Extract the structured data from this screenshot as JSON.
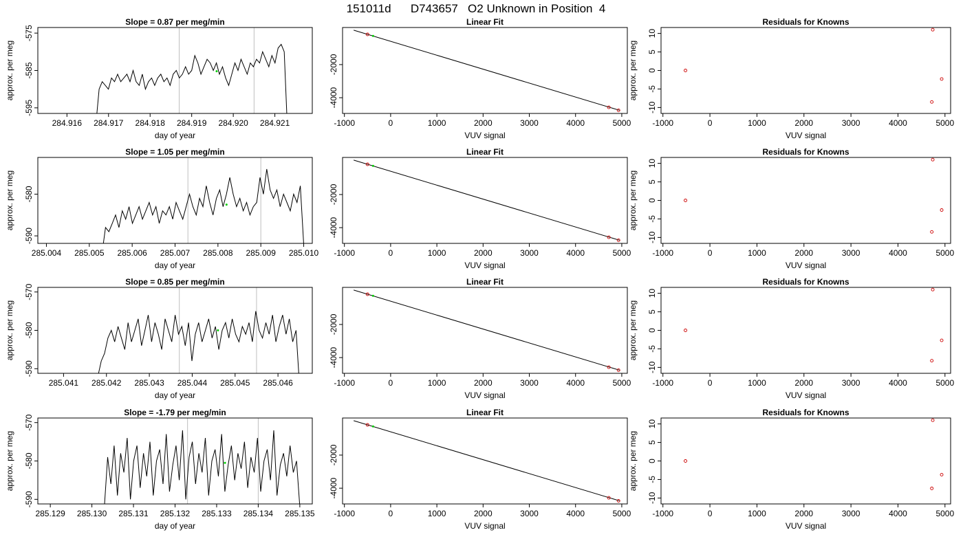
{
  "figure_title": "151011d      D743657   O2 Unknown in Position  4",
  "colors": {
    "frame": "#000000",
    "trace": "#000000",
    "marker": "#00cc00",
    "residual": "#cc0000",
    "vline": "#bebebe"
  },
  "chart_data": [
    {
      "type": "line",
      "panel": "time-series",
      "row": 0,
      "title": "Slope =  0.87  per meg/min",
      "xlabel": "day of year",
      "ylabel": "approx. per meg",
      "xlim": [
        284.9153,
        284.9219
      ],
      "ylim": [
        -596.5,
        -573.5
      ],
      "xticks": [
        "284.916",
        "284.917",
        "284.918",
        "284.919",
        "284.920",
        "284.921"
      ],
      "yticks": [
        "-575",
        "-585",
        "-595"
      ],
      "trace_x_range": [
        284.9167,
        284.9213
      ],
      "trace_y": [
        -599,
        -590,
        -588,
        -589,
        -590,
        -587,
        -588,
        -586,
        -588,
        -587,
        -586,
        -588,
        -585,
        -588,
        -589,
        -586,
        -590,
        -588,
        -587,
        -589,
        -587,
        -586,
        -588,
        -587,
        -589,
        -586,
        -585,
        -587,
        -586,
        -584,
        -586,
        -585,
        -581,
        -583,
        -586,
        -584,
        -582,
        -583,
        -585,
        -583,
        -586,
        -584,
        -587,
        -589,
        -586,
        -583,
        -585,
        -582,
        -584,
        -586,
        -583,
        -584,
        -582,
        -583,
        -580,
        -582,
        -584,
        -581,
        -583,
        -579,
        -578,
        -580,
        -600
      ],
      "vlines": [
        284.9187,
        284.9205
      ],
      "marker": {
        "x": 284.9196,
        "y": -585.2
      }
    },
    {
      "type": "scatter",
      "panel": "linear-fit",
      "row": 0,
      "title": "Linear Fit",
      "xlabel": "VUV signal",
      "ylabel": "",
      "xlim": [
        -1040,
        5120
      ],
      "ylim": [
        -4950,
        240
      ],
      "xticks": [
        "-1000",
        "0",
        "1000",
        "2000",
        "3000",
        "4000",
        "5000"
      ],
      "yticks": [
        "-2000",
        "-4000"
      ],
      "fit_line": {
        "x": [
          -800,
          4950
        ],
        "y": [
          80,
          -4760
        ]
      },
      "points": [
        {
          "x": -500,
          "y": -175
        },
        {
          "x": 4720,
          "y": -4580
        },
        {
          "x": 4930,
          "y": -4760
        }
      ],
      "unknown": {
        "x": -380,
        "y": -270
      }
    },
    {
      "type": "scatter",
      "panel": "residuals",
      "row": 0,
      "title": "Residuals for Knowns",
      "xlabel": "VUV signal",
      "ylabel": "approx. per meg",
      "xlim": [
        -1040,
        5120
      ],
      "ylim": [
        -11.6,
        11.6
      ],
      "xticks": [
        "-1000",
        "0",
        "1000",
        "2000",
        "3000",
        "4000",
        "5000"
      ],
      "yticks": [
        "10",
        "5",
        "0",
        "-5",
        "-10"
      ],
      "points": [
        {
          "x": -520,
          "y": 0
        },
        {
          "x": 4720,
          "y": -8.5
        },
        {
          "x": 4930,
          "y": -2.3
        },
        {
          "x": 4740,
          "y": 11
        }
      ]
    },
    {
      "type": "line",
      "panel": "time-series",
      "row": 1,
      "title": "Slope =  1.05  per meg/min",
      "xlabel": "day of year",
      "ylabel": "approx. per meg",
      "xlim": [
        285.0038,
        285.0102
      ],
      "ylim": [
        -591.8,
        -571.2
      ],
      "xticks": [
        "285.004",
        "285.005",
        "285.006",
        "285.007",
        "285.008",
        "285.009",
        "285.010"
      ],
      "yticks": [
        "-580",
        "-590"
      ],
      "trace_x_range": [
        285.0053,
        285.01
      ],
      "trace_y": [
        -594,
        -588,
        -589,
        -587,
        -585,
        -588,
        -584,
        -586,
        -583,
        -587,
        -585,
        -583,
        -586,
        -584,
        -582,
        -585,
        -583,
        -587,
        -584,
        -585,
        -583,
        -586,
        -582,
        -584,
        -586,
        -583,
        -580,
        -583,
        -585,
        -581,
        -583,
        -578,
        -582,
        -585,
        -581,
        -579,
        -583,
        -580,
        -576,
        -580,
        -583,
        -581,
        -584,
        -582,
        -585,
        -583,
        -582,
        -576,
        -580,
        -574,
        -579,
        -581,
        -579,
        -583,
        -580,
        -582,
        -584,
        -580,
        -582,
        -578,
        -592
      ],
      "vlines": [
        285.0073,
        285.009
      ],
      "marker": {
        "x": 285.0082,
        "y": -582.5
      }
    },
    {
      "type": "scatter",
      "panel": "linear-fit",
      "row": 1,
      "title": "Linear Fit",
      "xlabel": "VUV signal",
      "ylabel": "",
      "xlim": [
        -1040,
        5120
      ],
      "ylim": [
        -4950,
        240
      ],
      "xticks": [
        "-1000",
        "0",
        "1000",
        "2000",
        "3000",
        "4000",
        "5000"
      ],
      "yticks": [
        "-2000",
        "-4000"
      ],
      "fit_line": {
        "x": [
          -800,
          4950
        ],
        "y": [
          80,
          -4760
        ]
      },
      "points": [
        {
          "x": -500,
          "y": -175
        },
        {
          "x": 4720,
          "y": -4580
        },
        {
          "x": 4930,
          "y": -4760
        }
      ],
      "unknown": {
        "x": -380,
        "y": -270
      }
    },
    {
      "type": "scatter",
      "panel": "residuals",
      "row": 1,
      "title": "Residuals for Knowns",
      "xlabel": "VUV signal",
      "ylabel": "approx. per meg",
      "xlim": [
        -1040,
        5120
      ],
      "ylim": [
        -11.6,
        11.6
      ],
      "xticks": [
        "-1000",
        "0",
        "1000",
        "2000",
        "3000",
        "4000",
        "5000"
      ],
      "yticks": [
        "10",
        "5",
        "0",
        "-5",
        "-10"
      ],
      "points": [
        {
          "x": -520,
          "y": 0
        },
        {
          "x": 4720,
          "y": -8.5
        },
        {
          "x": 4930,
          "y": -2.6
        },
        {
          "x": 4740,
          "y": 11
        }
      ]
    },
    {
      "type": "line",
      "panel": "time-series",
      "row": 2,
      "title": "Slope =  0.85  per meg/min",
      "xlabel": "day of year",
      "ylabel": "approx. per meg",
      "xlim": [
        285.0404,
        285.0468
      ],
      "ylim": [
        -591.2,
        -568.8
      ],
      "xticks": [
        "285.041",
        "285.042",
        "285.043",
        "285.044",
        "285.045",
        "285.046"
      ],
      "yticks": [
        "-570",
        "-580",
        "-590"
      ],
      "trace_x_range": [
        285.0418,
        285.0465
      ],
      "trace_y": [
        -592,
        -588,
        -586,
        -582,
        -580,
        -583,
        -579,
        -582,
        -585,
        -578,
        -583,
        -580,
        -577,
        -584,
        -580,
        -576,
        -583,
        -578,
        -581,
        -585,
        -577,
        -580,
        -583,
        -576,
        -581,
        -579,
        -584,
        -578,
        -588,
        -581,
        -578,
        -583,
        -580,
        -577,
        -582,
        -579,
        -585,
        -580,
        -578,
        -582,
        -577,
        -581,
        -583,
        -579,
        -581,
        -578,
        -583,
        -575,
        -580,
        -582,
        -578,
        -581,
        -576,
        -583,
        -579,
        -576,
        -581,
        -577,
        -583,
        -580,
        -594
      ],
      "vlines": [
        285.0437,
        285.0455
      ],
      "marker": {
        "x": 285.0446,
        "y": -580
      }
    },
    {
      "type": "scatter",
      "panel": "linear-fit",
      "row": 2,
      "title": "Linear Fit",
      "xlabel": "VUV signal",
      "ylabel": "",
      "xlim": [
        -1040,
        5120
      ],
      "ylim": [
        -4950,
        240
      ],
      "xticks": [
        "-1000",
        "0",
        "1000",
        "2000",
        "3000",
        "4000",
        "5000"
      ],
      "yticks": [
        "-2000",
        "-4000"
      ],
      "fit_line": {
        "x": [
          -800,
          4950
        ],
        "y": [
          80,
          -4760
        ]
      },
      "points": [
        {
          "x": -500,
          "y": -175
        },
        {
          "x": 4720,
          "y": -4580
        },
        {
          "x": 4930,
          "y": -4760
        }
      ],
      "unknown": {
        "x": -380,
        "y": -270
      }
    },
    {
      "type": "scatter",
      "panel": "residuals",
      "row": 2,
      "title": "Residuals for Knowns",
      "xlabel": "VUV signal",
      "ylabel": "approx. per meg",
      "xlim": [
        -1040,
        5120
      ],
      "ylim": [
        -11.6,
        11.6
      ],
      "xticks": [
        "-1000",
        "0",
        "1000",
        "2000",
        "3000",
        "4000",
        "5000"
      ],
      "yticks": [
        "10",
        "5",
        "0",
        "-5",
        "-10"
      ],
      "points": [
        {
          "x": -520,
          "y": 0
        },
        {
          "x": 4720,
          "y": -8.2
        },
        {
          "x": 4930,
          "y": -2.7
        },
        {
          "x": 4740,
          "y": 11
        }
      ]
    },
    {
      "type": "line",
      "panel": "time-series",
      "row": 3,
      "title": "Slope =  -1.79  per meg/min",
      "xlabel": "day of year",
      "ylabel": "approx. per meg",
      "xlim": [
        285.1287,
        285.1353
      ],
      "ylim": [
        -591.2,
        -568.8
      ],
      "xticks": [
        "285.129",
        "285.130",
        "285.131",
        "285.132",
        "285.133",
        "285.134",
        "285.135"
      ],
      "yticks": [
        "-570",
        "-580",
        "-590"
      ],
      "trace_x_range": [
        285.1303,
        285.135
      ],
      "trace_y": [
        -592,
        -579,
        -586,
        -576,
        -589,
        -578,
        -583,
        -574,
        -590,
        -580,
        -576,
        -587,
        -578,
        -584,
        -575,
        -589,
        -580,
        -577,
        -586,
        -573,
        -588,
        -581,
        -576,
        -585,
        -572,
        -590,
        -579,
        -575,
        -586,
        -578,
        -583,
        -574,
        -589,
        -580,
        -577,
        -584,
        -573,
        -588,
        -581,
        -576,
        -585,
        -578,
        -582,
        -575,
        -587,
        -579,
        -583,
        -574,
        -588,
        -580,
        -577,
        -585,
        -572,
        -589,
        -581,
        -578,
        -584,
        -576,
        -583,
        -580,
        -592
      ],
      "vlines": [
        285.1323,
        285.134
      ],
      "marker": {
        "x": 285.1332,
        "y": -580.5
      }
    },
    {
      "type": "scatter",
      "panel": "linear-fit",
      "row": 3,
      "title": "Linear Fit",
      "xlabel": "VUV signal",
      "ylabel": "",
      "xlim": [
        -1040,
        5120
      ],
      "ylim": [
        -4950,
        240
      ],
      "xticks": [
        "-1000",
        "0",
        "1000",
        "2000",
        "3000",
        "4000",
        "5000"
      ],
      "yticks": [
        "-2000",
        "-4000"
      ],
      "fit_line": {
        "x": [
          -800,
          4950
        ],
        "y": [
          80,
          -4760
        ]
      },
      "points": [
        {
          "x": -500,
          "y": -175
        },
        {
          "x": 4720,
          "y": -4580
        },
        {
          "x": 4930,
          "y": -4760
        }
      ],
      "unknown": {
        "x": -380,
        "y": -270
      }
    },
    {
      "type": "scatter",
      "panel": "residuals",
      "row": 3,
      "title": "Residuals for Knowns",
      "xlabel": "VUV signal",
      "ylabel": "approx. per meg",
      "xlim": [
        -1040,
        5120
      ],
      "ylim": [
        -11.6,
        11.6
      ],
      "xticks": [
        "-1000",
        "0",
        "1000",
        "2000",
        "3000",
        "4000",
        "5000"
      ],
      "yticks": [
        "10",
        "5",
        "0",
        "-5",
        "-10"
      ],
      "points": [
        {
          "x": -520,
          "y": 0
        },
        {
          "x": 4720,
          "y": -7.4
        },
        {
          "x": 4930,
          "y": -3.7
        },
        {
          "x": 4740,
          "y": 11
        }
      ]
    }
  ]
}
